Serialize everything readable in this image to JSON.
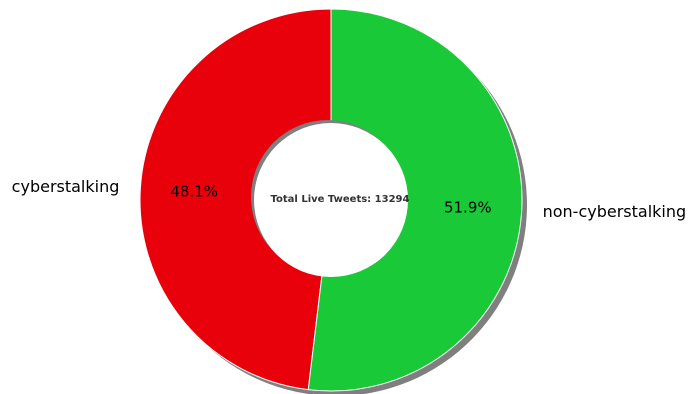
{
  "chart_data": {
    "type": "pie",
    "style": "donut",
    "shadow": true,
    "categories": [
      "cyberstalking",
      "non-cyberstalking"
    ],
    "values": [
      48.1,
      51.9
    ],
    "value_labels": [
      "48.1%",
      "51.9%"
    ],
    "colors": [
      "#e8000b",
      "#1ac938"
    ],
    "center_text": "Total Live Tweets: 13294",
    "start": "top",
    "direction": "counterclockwise"
  }
}
